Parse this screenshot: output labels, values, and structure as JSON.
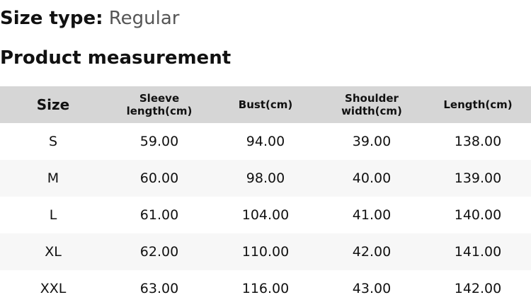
{
  "size_type": {
    "label": "Size type:",
    "value": "Regular"
  },
  "title": "Product measurement",
  "table": {
    "headers": [
      "Size",
      "Sleeve length(cm)",
      "Bust(cm)",
      "Shoulder width(cm)",
      "Length(cm)"
    ],
    "rows": [
      [
        "S",
        "59.00",
        "94.00",
        "39.00",
        "138.00"
      ],
      [
        "M",
        "60.00",
        "98.00",
        "40.00",
        "139.00"
      ],
      [
        "L",
        "61.00",
        "104.00",
        "41.00",
        "140.00"
      ],
      [
        "XL",
        "62.00",
        "110.00",
        "42.00",
        "141.00"
      ],
      [
        "XXL",
        "63.00",
        "116.00",
        "43.00",
        "142.00"
      ]
    ]
  }
}
